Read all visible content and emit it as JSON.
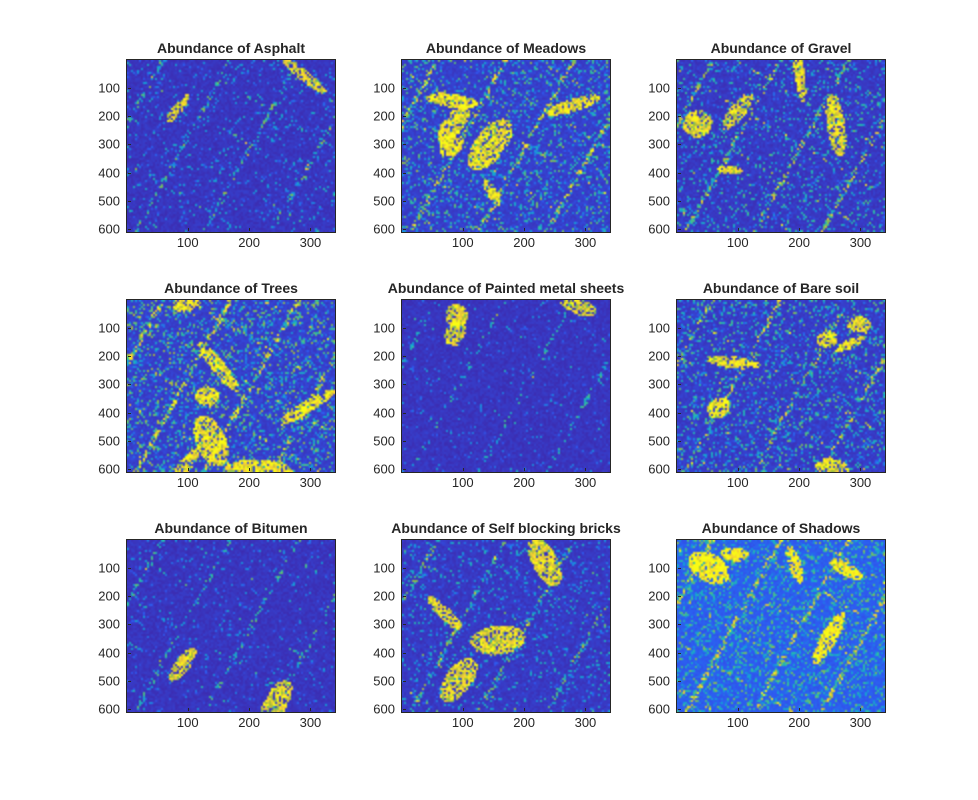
{
  "figure": {
    "background": "#ffffff",
    "colormap": [
      "#3e26a8",
      "#2e5af2",
      "#139fd8",
      "#2bbfa3",
      "#a3bd3a",
      "#f6c73a",
      "#f9fb14"
    ]
  },
  "chart_data": [
    {
      "type": "heatmap",
      "title": "Abundance of Asphalt",
      "xticks": [
        100,
        200,
        300
      ],
      "yticks": [
        100,
        200,
        300,
        400,
        500,
        600
      ],
      "xlim": [
        1,
        340
      ],
      "ylim": [
        1,
        610
      ],
      "y_direction": "reverse",
      "grid": false
    },
    {
      "type": "heatmap",
      "title": "Abundance of Meadows",
      "xticks": [
        100,
        200,
        300
      ],
      "yticks": [
        100,
        200,
        300,
        400,
        500,
        600
      ],
      "xlim": [
        1,
        340
      ],
      "ylim": [
        1,
        610
      ],
      "y_direction": "reverse",
      "grid": false
    },
    {
      "type": "heatmap",
      "title": "Abundance of Gravel",
      "xticks": [
        100,
        200,
        300
      ],
      "yticks": [
        100,
        200,
        300,
        400,
        500,
        600
      ],
      "xlim": [
        1,
        340
      ],
      "ylim": [
        1,
        610
      ],
      "y_direction": "reverse",
      "grid": false
    },
    {
      "type": "heatmap",
      "title": "Abundance of Trees",
      "xticks": [
        100,
        200,
        300
      ],
      "yticks": [
        100,
        200,
        300,
        400,
        500,
        600
      ],
      "xlim": [
        1,
        340
      ],
      "ylim": [
        1,
        610
      ],
      "y_direction": "reverse",
      "grid": false
    },
    {
      "type": "heatmap",
      "title": "Abundance of Painted metal sheets",
      "xticks": [
        100,
        200,
        300
      ],
      "yticks": [
        100,
        200,
        300,
        400,
        500,
        600
      ],
      "xlim": [
        1,
        340
      ],
      "ylim": [
        1,
        610
      ],
      "y_direction": "reverse",
      "grid": false
    },
    {
      "type": "heatmap",
      "title": "Abundance of Bare soil",
      "xticks": [
        100,
        200,
        300
      ],
      "yticks": [
        100,
        200,
        300,
        400,
        500,
        600
      ],
      "xlim": [
        1,
        340
      ],
      "ylim": [
        1,
        610
      ],
      "y_direction": "reverse",
      "grid": false
    },
    {
      "type": "heatmap",
      "title": "Abundance of Bitumen",
      "xticks": [
        100,
        200,
        300
      ],
      "yticks": [
        100,
        200,
        300,
        400,
        500,
        600
      ],
      "xlim": [
        1,
        340
      ],
      "ylim": [
        1,
        610
      ],
      "y_direction": "reverse",
      "grid": false
    },
    {
      "type": "heatmap",
      "title": "Abundance of Self blocking bricks",
      "xticks": [
        100,
        200,
        300
      ],
      "yticks": [
        100,
        200,
        300,
        400,
        500,
        600
      ],
      "xlim": [
        1,
        340
      ],
      "ylim": [
        1,
        610
      ],
      "y_direction": "reverse",
      "grid": false
    },
    {
      "type": "heatmap",
      "title": "Abundance of Shadows",
      "xticks": [
        100,
        200,
        300
      ],
      "yticks": [
        100,
        200,
        300,
        400,
        500,
        600
      ],
      "xlim": [
        1,
        340
      ],
      "ylim": [
        1,
        610
      ],
      "y_direction": "reverse",
      "grid": false
    }
  ]
}
